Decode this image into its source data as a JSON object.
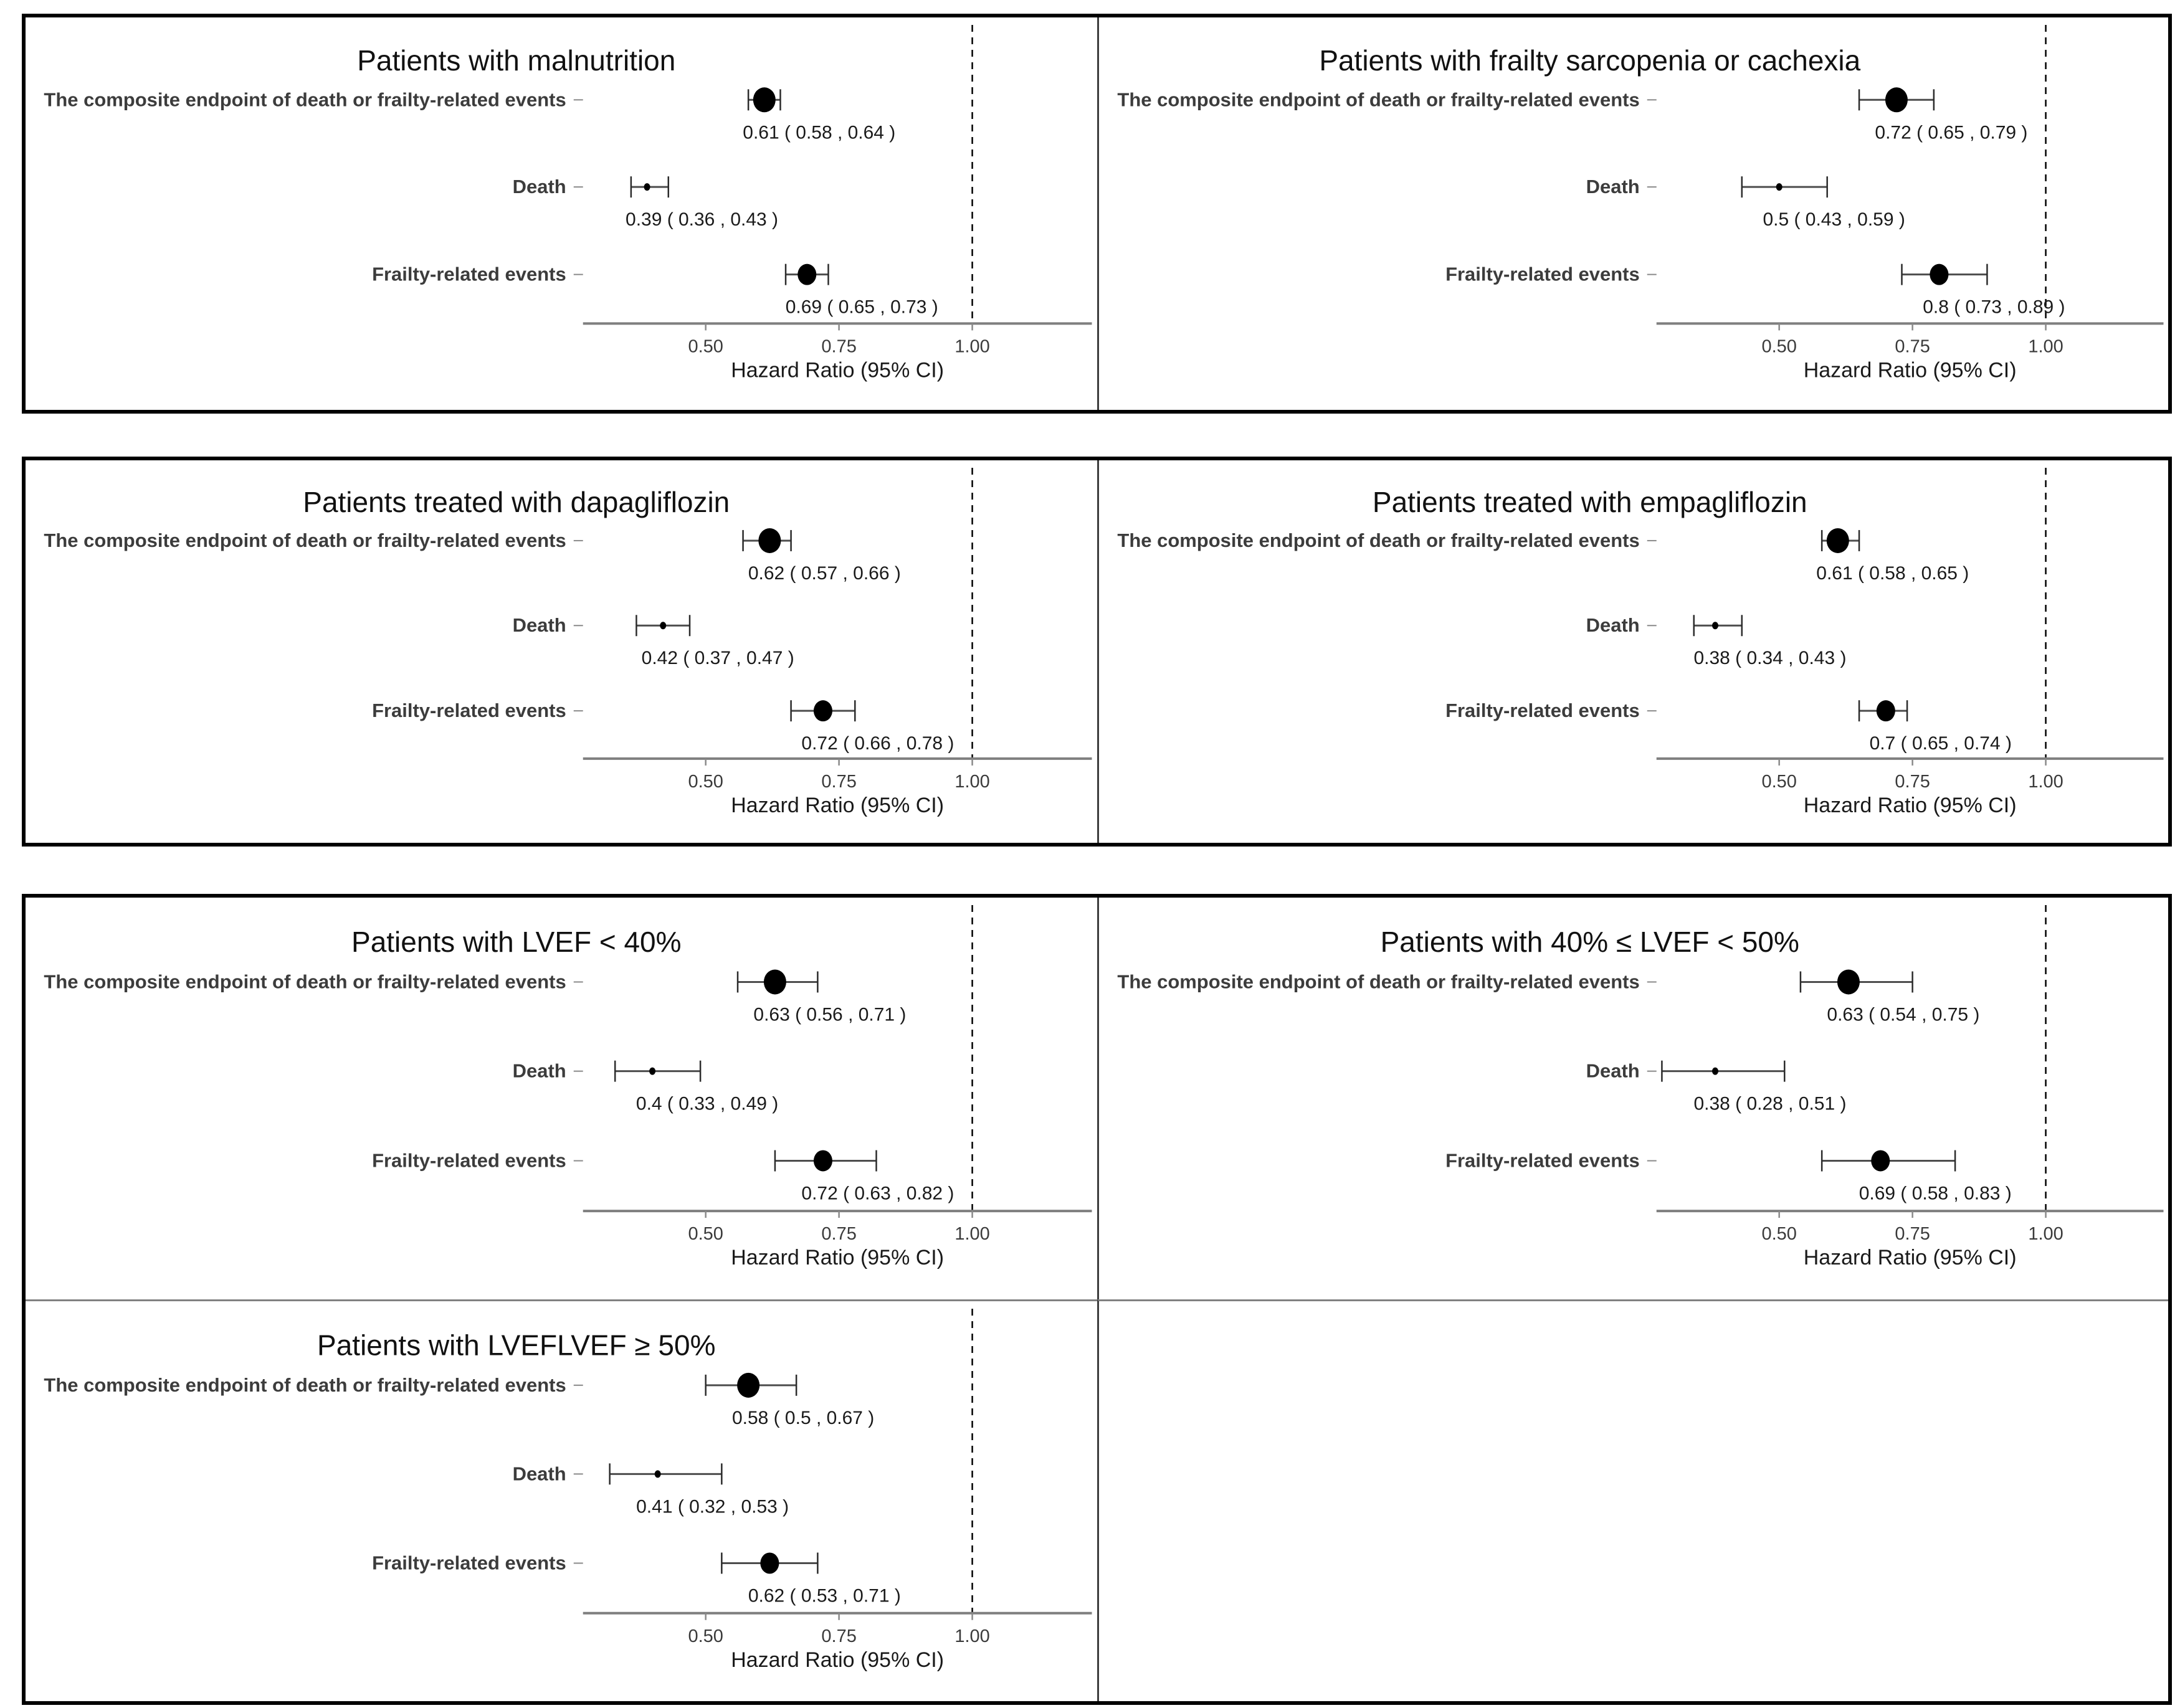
{
  "figure": {
    "axis_title": "Hazard Ratio (95% CI)",
    "x_tick_labels": [
      "0.50",
      "0.75",
      "1.00"
    ],
    "x_tick_values": [
      0.5,
      0.75,
      1.0
    ],
    "x_domain": [
      0.28,
      1.24
    ],
    "reference_line": 1.0,
    "grid": "off",
    "colors": {
      "marker": "#000000",
      "ci_line": "#4d4d4d",
      "ci_cap": "#2b2b2b",
      "axis_line": "#7f7f7f",
      "tick_mark": "#8a8a8a",
      "tick_label": "#3a3a3a",
      "row_label": "#3c3c3c",
      "title": "#111111",
      "value_label": "#1a1a1a",
      "ref_line": "#000000",
      "border": "#000000",
      "divider": "#808080"
    }
  },
  "chart_data": [
    {
      "type": "forest",
      "title": "Patients with malnutrition",
      "xlabel": "Hazard Ratio (95% CI)",
      "xlim": [
        0.28,
        1.24
      ],
      "x_ticks": [
        "0.50",
        "0.75",
        "1.00"
      ],
      "reference_line": 1.0,
      "rows": [
        {
          "label": "The composite endpoint of death or frailty-related events",
          "hr": 0.61,
          "ci": [
            0.58,
            0.64
          ],
          "text": "0.61 ( 0.58 ,  0.64 )",
          "marker": "large"
        },
        {
          "label": "Death",
          "hr": 0.39,
          "ci": [
            0.36,
            0.43
          ],
          "text": "0.39 ( 0.36 ,  0.43 )",
          "marker": "small"
        },
        {
          "label": "Frailty-related events",
          "hr": 0.69,
          "ci": [
            0.65,
            0.73
          ],
          "text": "0.69 ( 0.65 ,  0.73 )",
          "marker": "medium"
        }
      ]
    },
    {
      "type": "forest",
      "title": "Patients with frailty sarcopenia or cachexia",
      "xlabel": "Hazard Ratio (95% CI)",
      "xlim": [
        0.28,
        1.24
      ],
      "x_ticks": [
        "0.50",
        "0.75",
        "1.00"
      ],
      "reference_line": 1.0,
      "rows": [
        {
          "label": "The composite endpoint of death or frailty-related events",
          "hr": 0.72,
          "ci": [
            0.65,
            0.79
          ],
          "text": "0.72 ( 0.65 ,  0.79 )",
          "marker": "large"
        },
        {
          "label": "Death",
          "hr": 0.5,
          "ci": [
            0.43,
            0.59
          ],
          "text": "0.5 ( 0.43 ,  0.59 )",
          "marker": "small"
        },
        {
          "label": "Frailty-related events",
          "hr": 0.8,
          "ci": [
            0.73,
            0.89
          ],
          "text": "0.8 ( 0.73 ,  0.89 )",
          "marker": "medium"
        }
      ]
    },
    {
      "type": "forest",
      "title": "Patients treated with dapagliflozin",
      "xlabel": "Hazard Ratio (95% CI)",
      "xlim": [
        0.28,
        1.24
      ],
      "x_ticks": [
        "0.50",
        "0.75",
        "1.00"
      ],
      "reference_line": 1.0,
      "rows": [
        {
          "label": "The composite endpoint of death or frailty-related events",
          "hr": 0.62,
          "ci": [
            0.57,
            0.66
          ],
          "text": "0.62 ( 0.57 ,  0.66 )",
          "marker": "large"
        },
        {
          "label": "Death",
          "hr": 0.42,
          "ci": [
            0.37,
            0.47
          ],
          "text": "0.42 ( 0.37 ,  0.47 )",
          "marker": "small"
        },
        {
          "label": "Frailty-related events",
          "hr": 0.72,
          "ci": [
            0.66,
            0.78
          ],
          "text": "0.72 ( 0.66 ,  0.78 )",
          "marker": "medium"
        }
      ]
    },
    {
      "type": "forest",
      "title": "Patients treated with empagliflozin",
      "xlabel": "Hazard Ratio (95% CI)",
      "xlim": [
        0.28,
        1.24
      ],
      "x_ticks": [
        "0.50",
        "0.75",
        "1.00"
      ],
      "reference_line": 1.0,
      "rows": [
        {
          "label": "The composite endpoint of death or frailty-related events",
          "hr": 0.61,
          "ci": [
            0.58,
            0.65
          ],
          "text": "0.61 ( 0.58 ,  0.65 )",
          "marker": "large"
        },
        {
          "label": "Death",
          "hr": 0.38,
          "ci": [
            0.34,
            0.43
          ],
          "text": "0.38 ( 0.34 ,  0.43 )",
          "marker": "small"
        },
        {
          "label": "Frailty-related events",
          "hr": 0.7,
          "ci": [
            0.65,
            0.74
          ],
          "text": "0.7 ( 0.65 ,  0.74 )",
          "marker": "medium"
        }
      ]
    },
    {
      "type": "forest",
      "title": "Patients with LVEF < 40%",
      "xlabel": "Hazard Ratio (95% CI)",
      "xlim": [
        0.28,
        1.24
      ],
      "x_ticks": [
        "0.50",
        "0.75",
        "1.00"
      ],
      "reference_line": 1.0,
      "rows": [
        {
          "label": "The composite endpoint of death or frailty-related events",
          "hr": 0.63,
          "ci": [
            0.56,
            0.71
          ],
          "text": "0.63 ( 0.56 ,  0.71 )",
          "marker": "large"
        },
        {
          "label": "Death",
          "hr": 0.4,
          "ci": [
            0.33,
            0.49
          ],
          "text": "0.4 ( 0.33 ,  0.49 )",
          "marker": "small"
        },
        {
          "label": "Frailty-related events",
          "hr": 0.72,
          "ci": [
            0.63,
            0.82
          ],
          "text": "0.72 ( 0.63 ,  0.82 )",
          "marker": "medium"
        }
      ]
    },
    {
      "type": "forest",
      "title": "Patients with 40% ≤ LVEF < 50%",
      "xlabel": "Hazard Ratio (95% CI)",
      "xlim": [
        0.28,
        1.24
      ],
      "x_ticks": [
        "0.50",
        "0.75",
        "1.00"
      ],
      "reference_line": 1.0,
      "rows": [
        {
          "label": "The composite endpoint of death or frailty-related events",
          "hr": 0.63,
          "ci": [
            0.54,
            0.75
          ],
          "text": "0.63 ( 0.54 ,  0.75 )",
          "marker": "large"
        },
        {
          "label": "Death",
          "hr": 0.38,
          "ci": [
            0.28,
            0.51
          ],
          "text": "0.38 ( 0.28 ,  0.51 )",
          "marker": "small"
        },
        {
          "label": "Frailty-related events",
          "hr": 0.69,
          "ci": [
            0.58,
            0.83
          ],
          "text": "0.69 ( 0.58 ,  0.83 )",
          "marker": "medium"
        }
      ]
    },
    {
      "type": "forest",
      "title": "Patients with LVEFLVEF ≥ 50%",
      "xlabel": "Hazard Ratio (95% CI)",
      "xlim": [
        0.28,
        1.24
      ],
      "x_ticks": [
        "0.50",
        "0.75",
        "1.00"
      ],
      "reference_line": 1.0,
      "rows": [
        {
          "label": "The composite endpoint of death or frailty-related events",
          "hr": 0.58,
          "ci": [
            0.5,
            0.67
          ],
          "text": "0.58 ( 0.5 ,  0.67 )",
          "marker": "large"
        },
        {
          "label": "Death",
          "hr": 0.41,
          "ci": [
            0.32,
            0.53
          ],
          "text": "0.41 ( 0.32 ,  0.53 )",
          "marker": "small"
        },
        {
          "label": "Frailty-related events",
          "hr": 0.62,
          "ci": [
            0.53,
            0.71
          ],
          "text": "0.62 ( 0.53 ,  0.71 )",
          "marker": "medium"
        }
      ]
    }
  ]
}
